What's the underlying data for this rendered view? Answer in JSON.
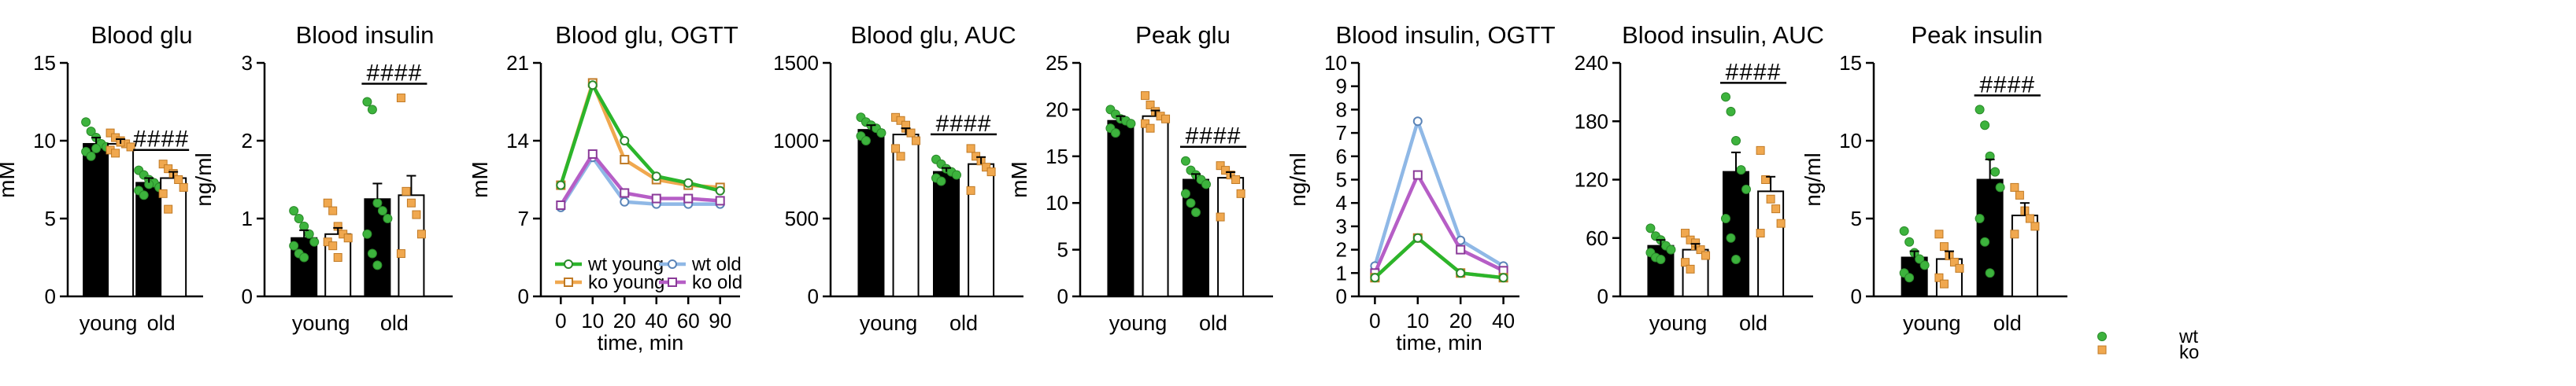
{
  "colors": {
    "wt": "#000000",
    "ko": "#ffffff",
    "wt_point": "#3db33d",
    "ko_point": "#f0a84f",
    "wt_young_line": "#2bb52b",
    "ko_young_line": "#f0a84f",
    "wt_old_line": "#8fb8e6",
    "ko_old_line": "#b65ec6"
  },
  "legend": {
    "wt_label": "wt",
    "ko_label": "ko"
  },
  "chart_data": [
    {
      "type": "bar",
      "title": "Blood glu",
      "ylabel": "mM",
      "xlabel": "",
      "ylim": [
        0,
        15
      ],
      "yticks": [
        0,
        5,
        10,
        15
      ],
      "categories": [
        "young",
        "old"
      ],
      "series": [
        {
          "name": "wt",
          "values": [
            9.8,
            7.3
          ],
          "err": [
            0.4,
            0.3
          ],
          "points": [
            [
              11.2,
              10.6,
              10.2,
              9.8,
              9.6,
              9.3,
              9.0,
              9.5
            ],
            [
              8.1,
              7.8,
              7.5,
              7.3,
              7.0,
              6.8,
              6.5,
              7.2
            ]
          ]
        },
        {
          "name": "ko",
          "values": [
            9.8,
            7.6
          ],
          "err": [
            0.3,
            0.4
          ],
          "points": [
            [
              10.5,
              10.2,
              10.0,
              9.8,
              9.6,
              9.4,
              9.2,
              9.9
            ],
            [
              8.5,
              8.2,
              7.9,
              7.5,
              7.0,
              6.6,
              5.6
            ]
          ]
        }
      ],
      "significance": [
        {
          "group": "old",
          "label": "####"
        }
      ]
    },
    {
      "type": "bar",
      "title": "Blood insulin",
      "ylabel": "ng/ml",
      "xlabel": "",
      "ylim": [
        0,
        3
      ],
      "yticks": [
        0,
        1,
        2,
        3
      ],
      "categories": [
        "young",
        "old"
      ],
      "series": [
        {
          "name": "wt",
          "values": [
            0.75,
            1.25
          ],
          "err": [
            0.1,
            0.2
          ],
          "points": [
            [
              1.1,
              1.0,
              0.9,
              0.8,
              0.7,
              0.65,
              0.55,
              0.5
            ],
            [
              2.5,
              2.4,
              1.2,
              1.1,
              1.0,
              0.8,
              0.55,
              0.4
            ]
          ]
        },
        {
          "name": "ko",
          "values": [
            0.8,
            1.3
          ],
          "err": [
            0.08,
            0.25
          ],
          "points": [
            [
              1.2,
              1.1,
              0.9,
              0.8,
              0.75,
              0.7,
              0.65,
              0.5
            ],
            [
              2.55,
              1.35,
              1.2,
              1.05,
              0.8,
              0.55
            ]
          ]
        }
      ],
      "significance": [
        {
          "group": "old",
          "label": "####"
        }
      ]
    },
    {
      "type": "line",
      "title": "Blood glu, OGTT",
      "ylabel": "mM",
      "xlabel": "time, min",
      "ylim": [
        0,
        21
      ],
      "yticks": [
        0,
        7,
        14,
        21
      ],
      "x": [
        0,
        10,
        20,
        40,
        60,
        90
      ],
      "series": [
        {
          "name": "wt young",
          "values": [
            10.0,
            19.0,
            14.0,
            10.8,
            10.2,
            9.5
          ]
        },
        {
          "name": "ko young",
          "values": [
            10.0,
            19.2,
            12.3,
            10.5,
            10.0,
            9.8
          ]
        },
        {
          "name": "wt old",
          "values": [
            8.0,
            12.5,
            8.5,
            8.3,
            8.3,
            8.3
          ]
        },
        {
          "name": "ko old",
          "values": [
            8.2,
            12.8,
            9.3,
            8.8,
            8.8,
            8.6
          ]
        }
      ],
      "legend_position": "bottom"
    },
    {
      "type": "bar",
      "title": "Blood glu, AUC",
      "ylabel": "",
      "xlabel": "",
      "ylim": [
        0,
        1500
      ],
      "yticks": [
        0,
        500,
        1000,
        1500
      ],
      "categories": [
        "young",
        "old"
      ],
      "series": [
        {
          "name": "wt",
          "values": [
            1070,
            800
          ],
          "err": [
            30,
            25
          ],
          "points": [
            [
              1150,
              1120,
              1100,
              1080,
              1050,
              1030,
              1000
            ],
            [
              880,
              850,
              820,
              800,
              780,
              760,
              740
            ]
          ]
        },
        {
          "name": "ko",
          "values": [
            1040,
            850
          ],
          "err": [
            40,
            45
          ],
          "points": [
            [
              1150,
              1130,
              1080,
              1050,
              1000,
              950,
              900,
              1100
            ],
            [
              950,
              900,
              870,
              830,
              800,
              680
            ]
          ]
        }
      ],
      "significance": [
        {
          "group": "old",
          "label": "####"
        }
      ]
    },
    {
      "type": "bar",
      "title": "Peak glu",
      "ylabel": "mM",
      "xlabel": "",
      "ylim": [
        0,
        25
      ],
      "yticks": [
        0,
        5,
        10,
        15,
        20,
        25
      ],
      "categories": [
        "young",
        "old"
      ],
      "series": [
        {
          "name": "wt",
          "values": [
            18.8,
            12.5
          ],
          "err": [
            0.5,
            0.6
          ],
          "points": [
            [
              20.0,
              19.5,
              19.0,
              18.8,
              18.5,
              18.0,
              17.5
            ],
            [
              14.5,
              13.5,
              13.0,
              12.5,
              12.0,
              11.0,
              10.0,
              9.0
            ]
          ]
        },
        {
          "name": "ko",
          "values": [
            19.3,
            12.7
          ],
          "err": [
            0.6,
            0.6
          ],
          "points": [
            [
              21.5,
              20.5,
              19.8,
              19.3,
              19.0,
              18.5,
              18.0
            ],
            [
              14.0,
              13.5,
              13.0,
              12.5,
              11.0,
              8.5
            ]
          ]
        }
      ],
      "significance": [
        {
          "group": "old",
          "label": "####"
        }
      ]
    },
    {
      "type": "line",
      "title": "Blood insulin, OGTT",
      "ylabel": "ng/ml",
      "xlabel": "time, min",
      "ylim": [
        0,
        10
      ],
      "yticks": [
        0,
        1,
        2,
        3,
        4,
        5,
        6,
        7,
        8,
        9,
        10
      ],
      "x": [
        0,
        10,
        20,
        40
      ],
      "series": [
        {
          "name": "wt young",
          "values": [
            0.8,
            2.5,
            1.0,
            0.8
          ]
        },
        {
          "name": "ko young",
          "values": [
            0.8,
            2.5,
            1.0,
            0.8
          ]
        },
        {
          "name": "wt old",
          "values": [
            1.3,
            7.5,
            2.4,
            1.3
          ]
        },
        {
          "name": "ko old",
          "values": [
            1.0,
            5.2,
            2.0,
            1.1
          ]
        }
      ]
    },
    {
      "type": "bar",
      "title": "Blood insulin, AUC",
      "ylabel": "",
      "xlabel": "",
      "ylim": [
        0,
        240
      ],
      "yticks": [
        0,
        60,
        120,
        180,
        240
      ],
      "categories": [
        "young",
        "old"
      ],
      "series": [
        {
          "name": "wt",
          "values": [
            52,
            128
          ],
          "err": [
            6,
            20
          ],
          "points": [
            [
              70,
              62,
              58,
              52,
              48,
              45,
              40,
              38
            ],
            [
              205,
              190,
              160,
              130,
              110,
              80,
              60,
              38
            ]
          ]
        },
        {
          "name": "ko",
          "values": [
            48,
            108
          ],
          "err": [
            6,
            15
          ],
          "points": [
            [
              65,
              58,
              52,
              48,
              42,
              35,
              28,
              55
            ],
            [
              150,
              120,
              100,
              90,
              75,
              65
            ]
          ]
        }
      ],
      "significance": [
        {
          "group": "old",
          "label": "####"
        }
      ]
    },
    {
      "type": "bar",
      "title": "Peak insulin",
      "ylabel": "ng/ml",
      "xlabel": "",
      "ylim": [
        0,
        15
      ],
      "yticks": [
        0,
        5,
        10,
        15
      ],
      "categories": [
        "young",
        "old"
      ],
      "series": [
        {
          "name": "wt",
          "values": [
            2.5,
            7.5
          ],
          "err": [
            0.4,
            1.3
          ],
          "points": [
            [
              4.2,
              3.5,
              2.8,
              2.4,
              2.0,
              1.5,
              1.2
            ],
            [
              12.0,
              11.0,
              9.0,
              8.0,
              7.0,
              5.0,
              3.5,
              1.5
            ]
          ]
        },
        {
          "name": "ko",
          "values": [
            2.4,
            5.2
          ],
          "err": [
            0.5,
            0.8
          ],
          "points": [
            [
              4.0,
              3.2,
              2.6,
              2.2,
              1.8,
              1.2,
              0.8
            ],
            [
              7.0,
              6.5,
              5.5,
              5.0,
              4.5,
              4.0
            ]
          ]
        }
      ],
      "significance": [
        {
          "group": "old",
          "label": "####"
        }
      ]
    }
  ]
}
